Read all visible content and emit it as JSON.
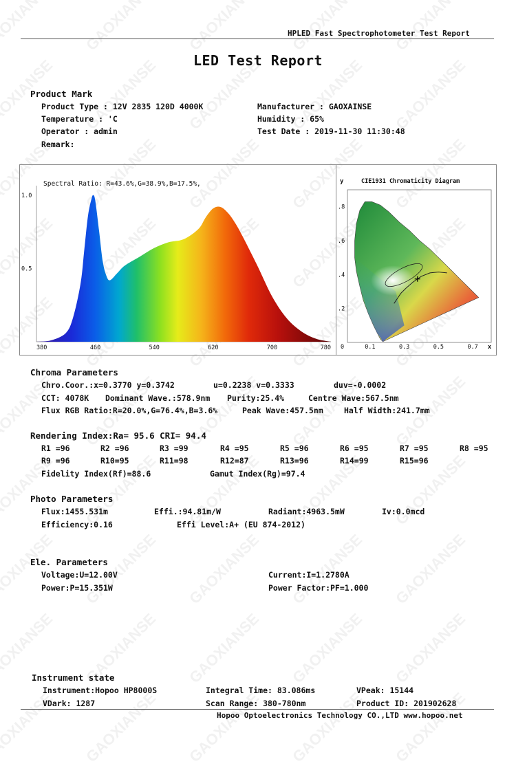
{
  "header": {
    "top_title": "HPLED Fast Spectrophotometer Test Report",
    "report_title": "LED Test Report"
  },
  "watermark": "GAOXIANSE",
  "product": {
    "heading": "Product Mark",
    "type": "Product Type : 12V 2835 120D 4000K",
    "manufacturer": "Manufacturer : GAOXAINSE",
    "temperature": "Temperature : 'C",
    "humidity": "Humidity : 65%",
    "operator": "Operator : admin",
    "test_date": "Test Date : 2019-11-30 11:30:48",
    "remark": "Remark:"
  },
  "chart_data": [
    {
      "type": "area",
      "title": "Spectral Ratio:  R=43.6%,G=38.9%,B=17.5%,",
      "x_ticks": [
        "380",
        "460",
        "540",
        "620",
        "700",
        "780"
      ],
      "y_ticks": [
        "1.0",
        "0.5"
      ],
      "xlim": [
        380,
        780
      ],
      "ylim": [
        0,
        1.0
      ],
      "x": [
        380,
        400,
        420,
        430,
        440,
        445,
        450,
        455,
        457.5,
        460,
        465,
        470,
        475,
        480,
        490,
        500,
        520,
        540,
        560,
        580,
        600,
        610,
        620,
        630,
        640,
        650,
        660,
        680,
        700,
        720,
        740,
        760,
        780
      ],
      "y": [
        0.0,
        0.01,
        0.06,
        0.17,
        0.4,
        0.63,
        0.86,
        0.98,
        1.0,
        0.96,
        0.76,
        0.55,
        0.45,
        0.42,
        0.47,
        0.52,
        0.58,
        0.64,
        0.68,
        0.7,
        0.77,
        0.85,
        0.91,
        0.92,
        0.88,
        0.81,
        0.72,
        0.52,
        0.31,
        0.16,
        0.07,
        0.02,
        0.0
      ]
    },
    {
      "type": "diagram",
      "title": "CIE1931 Chromaticity Diagram",
      "x_axis_label": "x",
      "y_axis_label": "y",
      "x_ticks": [
        "0",
        "0.1",
        "0.3",
        "0.5",
        "0.7"
      ],
      "y_ticks": [
        ".8",
        ".6",
        ".4",
        ".2"
      ],
      "point": {
        "x": 0.377,
        "y": 0.3742
      }
    }
  ],
  "chroma": {
    "heading": "Chroma Parameters",
    "coords": "Chro.Coor.:x=0.3770  y=0.3742",
    "uv": "u=0.2238  v=0.3333",
    "duv": "duv=-0.0002",
    "cct": "CCT: 4078K",
    "dominant": "Dominant Wave.:578.9nm",
    "purity": "Purity:25.4%",
    "centre": "Centre Wave:567.5nm",
    "flux_rgb": "Flux RGB Ratio:R=20.0%,G=76.4%,B=3.6%",
    "peak": "Peak Wave:457.5nm",
    "half_width": "Half Width:241.7mm"
  },
  "rendering": {
    "heading": "Rendering Index:Ra= 95.6 CRI= 94.4",
    "row1": [
      "R1 =96",
      "R2 =96",
      "R3 =99",
      "R4 =95",
      "R5 =96",
      "R6 =95",
      "R7 =95",
      "R8 =95"
    ],
    "row2": [
      "R9 =96",
      "R10=95",
      "R11=98",
      "R12=87",
      "R13=96",
      "R14=99",
      "R15=96"
    ],
    "fidelity": "Fidelity Index(Rf)=88.6",
    "gamut": "Gamut Index(Rg)=97.4"
  },
  "photo": {
    "heading": "Photo Parameters",
    "flux": "Flux:1455.531m",
    "effi": "Effi.:94.81m/W",
    "radiant": "Radiant:4963.5mW",
    "iv": "Iv:0.0mcd",
    "efficiency": "Efficiency:0.16",
    "effi_level": "Effi Level:A+ (EU 874-2012)"
  },
  "ele": {
    "heading": "Ele. Parameters",
    "voltage": "Voltage:U=12.00V",
    "current": "Current:I=1.2780A",
    "power": "Power:P=15.351W",
    "pf": "Power Factor:PF=1.000"
  },
  "instrument": {
    "heading": "Instrument state",
    "instrument": "Instrument:Hopoo HP8000S",
    "integral": "Integral Time: 83.086ms",
    "vpeak": "VPeak: 15144",
    "vdark": "VDark: 1287",
    "scan": "Scan Range: 380-780nm",
    "product_id": "Product ID: 201902628"
  },
  "footer": {
    "company": "Hopoo Optoelectronics Technology CO.,LTD  www.hopoo.net"
  }
}
